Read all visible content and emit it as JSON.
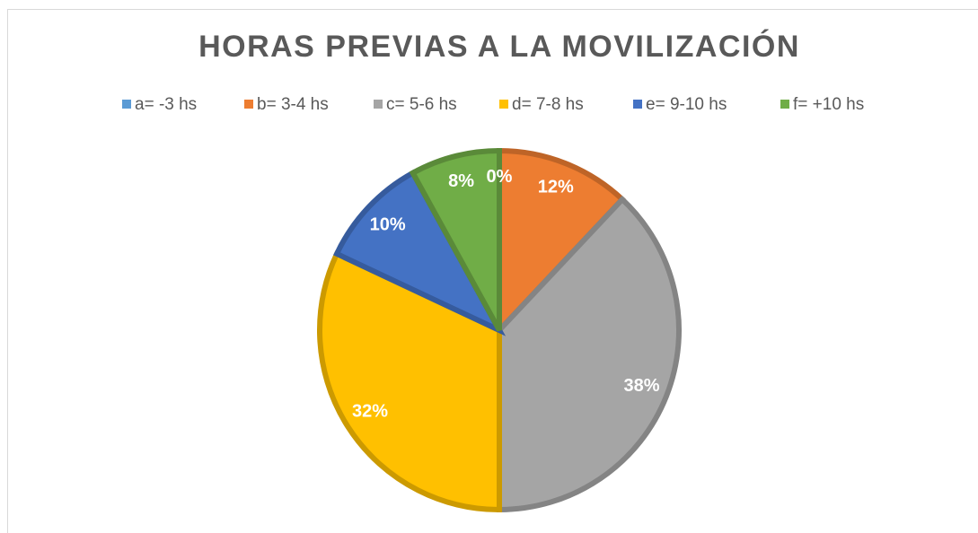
{
  "chart_data": {
    "type": "pie",
    "title": "HORAS PREVIAS A LA MOVILIZACIÓN",
    "categories": [
      "a= -3 hs",
      "b= 3-4 hs",
      "c= 5-6 hs",
      "d= 7-8 hs",
      "e= 9-10 hs",
      "f= +10 hs"
    ],
    "values": [
      0,
      12,
      38,
      32,
      10,
      8
    ],
    "value_labels": [
      "0%",
      "12%",
      "38%",
      "32%",
      "10%",
      "8%"
    ],
    "colors": [
      "#5b9bd5",
      "#ed7d31",
      "#a5a5a5",
      "#ffc000",
      "#4472c4",
      "#70ad47"
    ],
    "legend": "top"
  }
}
